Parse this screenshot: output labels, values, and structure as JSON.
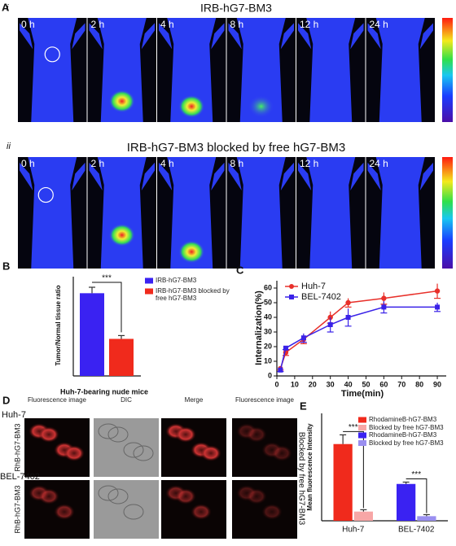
{
  "panel_a": {
    "label": "A",
    "rows": [
      {
        "label": "i",
        "title": "IRB-hG7-BM3",
        "times": [
          "0 h",
          "2 h",
          "4 h",
          "8 h",
          "12 h",
          "24 h"
        ]
      },
      {
        "label": "ii",
        "title": "IRB-hG7-BM3 blocked by free hG7-BM3",
        "times": [
          "0 h",
          "2 h",
          "4 h",
          "8 h",
          "12 h",
          "24 h"
        ]
      }
    ]
  },
  "panel_d": {
    "label": "D",
    "columns": [
      "Fluorescence image",
      "DIC",
      "Merge",
      "Fluorescence image"
    ],
    "rows": [
      {
        "cell_line": "Huh-7",
        "probe": "RhB-hG7-BM3"
      },
      {
        "cell_line": "BEL-7402",
        "probe": "RhB-hG7-BM3"
      }
    ],
    "side_label": "Blocked by free hG7-BM3"
  },
  "chart_data": [
    {
      "type": "bar",
      "panel": "B",
      "ylabel": "Tumor/Normal tissue ratio",
      "xlabel": "Huh-7-bearing nude mice",
      "ylim": [
        0,
        3
      ],
      "series": [
        {
          "name": "IRB-hG7-BM3",
          "color": "#3a22f2",
          "values": [
            2.5
          ],
          "errors": [
            0.18
          ]
        },
        {
          "name": "IRB-hG7-BM3 blocked by free hG7-BM3",
          "color": "#f02a1c",
          "values": [
            1.12
          ],
          "errors": [
            0.1
          ]
        }
      ],
      "annotations": [
        "***"
      ]
    },
    {
      "type": "line",
      "panel": "C",
      "ylabel": "Internalization(%)",
      "xlabel": "Time(min)",
      "x": [
        2,
        5,
        15,
        30,
        40,
        60,
        90
      ],
      "xlim": [
        0,
        95
      ],
      "xticks": [
        0,
        10,
        20,
        30,
        40,
        50,
        60,
        70,
        80,
        90
      ],
      "ylim": [
        0,
        65
      ],
      "yticks": [
        0,
        10,
        20,
        30,
        40,
        50,
        60
      ],
      "series": [
        {
          "name": "Huh-7",
          "color": "#e8302a",
          "values": [
            5,
            16,
            25,
            40,
            50,
            53,
            58
          ],
          "errors": [
            1,
            2,
            3,
            4,
            3,
            4,
            5
          ]
        },
        {
          "name": "BEL-7402",
          "color": "#3a22e8",
          "values": [
            4,
            19,
            26,
            35,
            40,
            47,
            47
          ],
          "errors": [
            1,
            1,
            3,
            5,
            6,
            4,
            3
          ]
        }
      ]
    },
    {
      "type": "grouped_bar",
      "panel": "E",
      "ylabel": "Mean fluorescence Intensity",
      "categories": [
        "Huh-7",
        "BEL-7402"
      ],
      "ylim": [
        0,
        35
      ],
      "series": [
        {
          "name": "RhodamineB-hG7-BM3",
          "color": "#f02a1c",
          "values": [
            25,
            null
          ],
          "errors": [
            3,
            null
          ]
        },
        {
          "name": "Blocked by free hG7-BM3",
          "color": "#f7a6a6",
          "values": [
            3,
            null
          ],
          "errors": [
            0.6,
            null
          ]
        },
        {
          "name": "RhodamineB-hG7-BM3",
          "color": "#3a22f2",
          "values": [
            null,
            12
          ],
          "errors": [
            null,
            0.6
          ]
        },
        {
          "name": "Blocked by free hG7-BM3",
          "color": "#9a8ff0",
          "values": [
            null,
            1.5
          ],
          "errors": [
            null,
            0.5
          ]
        }
      ],
      "annotations": [
        "***",
        "***"
      ]
    }
  ]
}
